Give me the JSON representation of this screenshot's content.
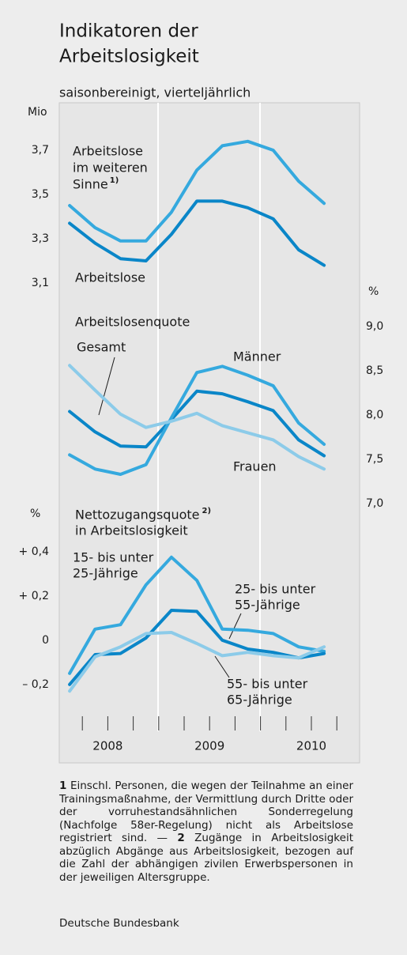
{
  "title_lines": [
    "Indikatoren der",
    "Arbeitslosigkeit"
  ],
  "subtitle": "saisonbereinigt, vierteljährlich",
  "x_axis": {
    "labels": [
      "2008",
      "2009",
      "2010"
    ]
  },
  "chart_data": [
    {
      "type": "line",
      "y_unit": "Mio",
      "y_axis_side": "left",
      "ylim": [
        3.1,
        3.9
      ],
      "yticks": [
        {
          "value": 3.1,
          "label": "3,1"
        },
        {
          "value": 3.3,
          "label": "3,3"
        },
        {
          "value": 3.5,
          "label": "3,5"
        },
        {
          "value": 3.7,
          "label": "3,7"
        }
      ],
      "series": [
        {
          "label_lines": [
            "Arbeitslose",
            "im weiteren",
            "Sinne"
          ],
          "note": "1)",
          "color": "#35a9de",
          "values": [
            3.45,
            3.35,
            3.29,
            3.29,
            3.42,
            3.61,
            3.72,
            3.74,
            3.7,
            3.56,
            3.46
          ]
        },
        {
          "label_lines": [
            "Arbeitslose"
          ],
          "color": "#0a86c8",
          "values": [
            3.37,
            3.28,
            3.21,
            3.2,
            3.32,
            3.47,
            3.47,
            3.44,
            3.39,
            3.25,
            3.18
          ]
        }
      ]
    },
    {
      "type": "line",
      "title_lines": [
        "Arbeitslosenquote"
      ],
      "y_unit": "%",
      "y_axis_side": "right",
      "ylim": [
        7.0,
        9.2
      ],
      "yticks": [
        {
          "value": 7.0,
          "label": "7,0"
        },
        {
          "value": 7.5,
          "label": "7,5"
        },
        {
          "value": 8.0,
          "label": "8,0"
        },
        {
          "value": 8.5,
          "label": "8,5"
        },
        {
          "value": 9.0,
          "label": "9,0"
        }
      ],
      "series": [
        {
          "label_lines": [
            "Gesamt"
          ],
          "color": "#0a86c8",
          "values": [
            8.04,
            7.81,
            7.65,
            7.64,
            7.95,
            8.27,
            8.24,
            8.15,
            8.05,
            7.72,
            7.54
          ]
        },
        {
          "label_lines": [
            "Männer"
          ],
          "color": "#35a9de",
          "values": [
            7.55,
            7.39,
            7.33,
            7.44,
            7.97,
            8.48,
            8.55,
            8.45,
            8.33,
            7.91,
            7.67
          ]
        },
        {
          "label_lines": [
            "Frauen"
          ],
          "color": "#8ccbe9",
          "values": [
            8.56,
            8.28,
            8.01,
            7.86,
            7.93,
            8.02,
            7.88,
            7.8,
            7.72,
            7.53,
            7.39
          ]
        }
      ]
    },
    {
      "type": "line",
      "title_lines": [
        "Nettozugangsquote",
        "in Arbeitslosigkeit"
      ],
      "title_note": "2)",
      "y_unit": "%",
      "y_axis_side": "left",
      "ylim": [
        -0.34,
        0.46
      ],
      "yticks": [
        {
          "value": -0.2,
          "label": "– 0,2"
        },
        0,
        {
          "value": 0.2,
          "label": "+ 0,2"
        },
        {
          "value": 0.4,
          "label": "+ 0,4"
        }
      ],
      "series": [
        {
          "label_lines": [
            "15- bis unter",
            "25-Jährige"
          ],
          "color": "#35a9de",
          "values": [
            -0.15,
            0.05,
            0.07,
            0.25,
            0.375,
            0.27,
            0.05,
            0.045,
            0.03,
            -0.03,
            -0.05
          ]
        },
        {
          "label_lines": [
            "25- bis unter",
            "55-Jährige"
          ],
          "color": "#0a86c8",
          "values": [
            -0.2,
            -0.065,
            -0.06,
            0.01,
            0.135,
            0.13,
            0.0,
            -0.04,
            -0.055,
            -0.08,
            -0.06
          ]
        },
        {
          "label_lines": [
            "55- bis unter",
            "65-Jährige"
          ],
          "color": "#8ccbe9",
          "values": [
            -0.23,
            -0.075,
            -0.03,
            0.03,
            0.035,
            -0.015,
            -0.07,
            -0.055,
            -0.07,
            -0.08,
            -0.03
          ]
        }
      ]
    }
  ],
  "footnotes": [
    {
      "marker": "1",
      "text": "Einschl. Personen, die wegen der Teilnahme an einer Trainingsmaßnahme, der Vermittlung durch Dritte oder der vorruhestandsähnlichen Sonderregelung (Nachfolge 58er-Regelung) nicht als Arbeitslose registriert sind. —"
    },
    {
      "marker": "2",
      "text": "Zugänge in Arbeitslosigkeit abzüglich Abgänge aus Arbeitslosigkeit, bezogen auf die Zahl der abhängigen zivilen Erwerbspersonen in der jeweiligen Altersgruppe."
    }
  ],
  "source": "Deutsche Bundesbank"
}
